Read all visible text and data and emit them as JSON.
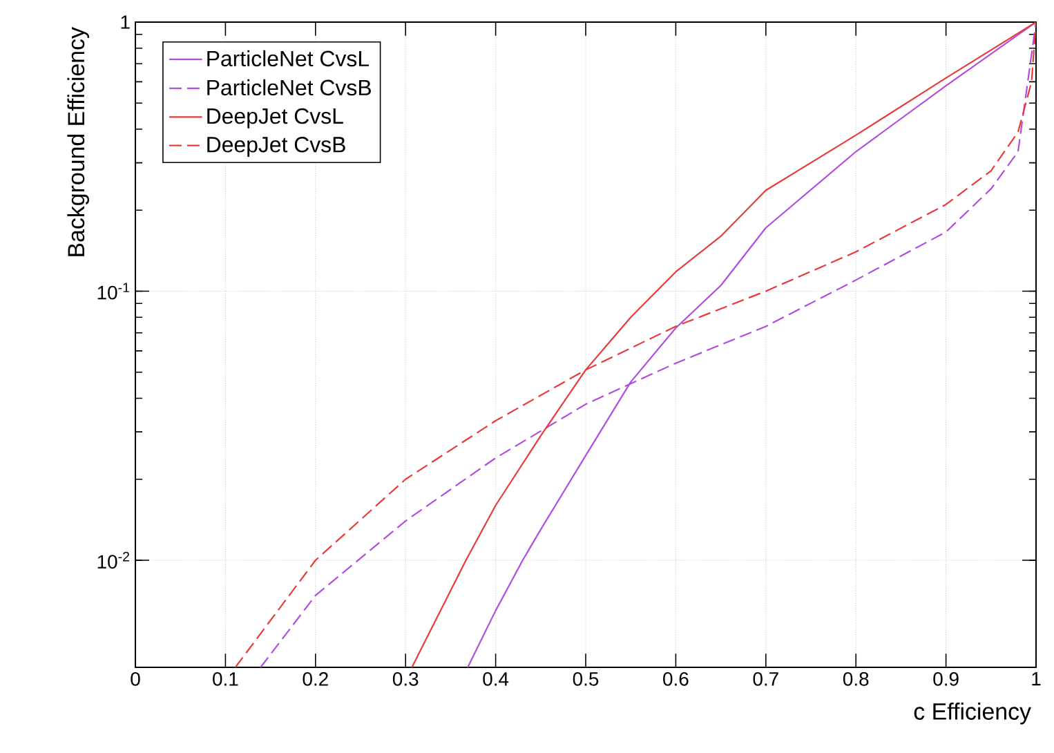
{
  "chart_data": {
    "type": "line",
    "xlabel": "c Efficiency",
    "ylabel": "Background Efficiency",
    "log": "y",
    "grid": true,
    "legend": "top left",
    "xlim": [
      0,
      1
    ],
    "ylim": [
      0.004,
      1
    ],
    "xticks": [
      0,
      0.1,
      0.2,
      0.3,
      0.4,
      0.5,
      0.6,
      0.7,
      0.8,
      0.9,
      1
    ],
    "yticks": [
      {
        "value": 0.01,
        "label": "10$^{-2}$"
      },
      {
        "value": 0.1,
        "label": "10$^{-1}$"
      },
      1
    ],
    "series": [
      {
        "name": "ParticleNet CvsL",
        "color": "#b04ce0",
        "line_style": "solid",
        "x": [
          0.369,
          0.4,
          0.43,
          0.45,
          0.5,
          0.55,
          0.6,
          0.65,
          0.7,
          0.8,
          0.9,
          1
        ],
        "values": [
          0.004,
          0.0065,
          0.01,
          0.013,
          0.0245,
          0.046,
          0.073,
          0.105,
          0.172,
          0.33,
          0.58,
          1
        ]
      },
      {
        "name": "ParticleNet CvsB",
        "color": "#b04ce0",
        "line_style": "dashed",
        "x": [
          0.139,
          0.2,
          0.3,
          0.4,
          0.5,
          0.6,
          0.7,
          0.8,
          0.9,
          0.95,
          0.98,
          1
        ],
        "values": [
          0.004,
          0.0074,
          0.014,
          0.024,
          0.038,
          0.054,
          0.074,
          0.11,
          0.166,
          0.24,
          0.33,
          1
        ]
      },
      {
        "name": "DeepJet CvsL",
        "color": "#e83a3a",
        "line_style": "solid",
        "x": [
          0.307,
          0.367,
          0.4,
          0.45,
          0.5,
          0.55,
          0.6,
          0.65,
          0.7,
          0.8,
          0.9,
          1
        ],
        "values": [
          0.004,
          0.01,
          0.016,
          0.029,
          0.051,
          0.08,
          0.118,
          0.16,
          0.237,
          0.38,
          0.62,
          1
        ]
      },
      {
        "name": "DeepJet CvsB",
        "color": "#e83a3a",
        "line_style": "dashed",
        "x": [
          0.111,
          0.2,
          0.3,
          0.4,
          0.5,
          0.6,
          0.7,
          0.8,
          0.9,
          0.95,
          0.98,
          0.995,
          1
        ],
        "values": [
          0.004,
          0.01,
          0.02,
          0.033,
          0.051,
          0.074,
          0.1,
          0.14,
          0.21,
          0.28,
          0.39,
          0.6,
          1
        ]
      }
    ]
  }
}
